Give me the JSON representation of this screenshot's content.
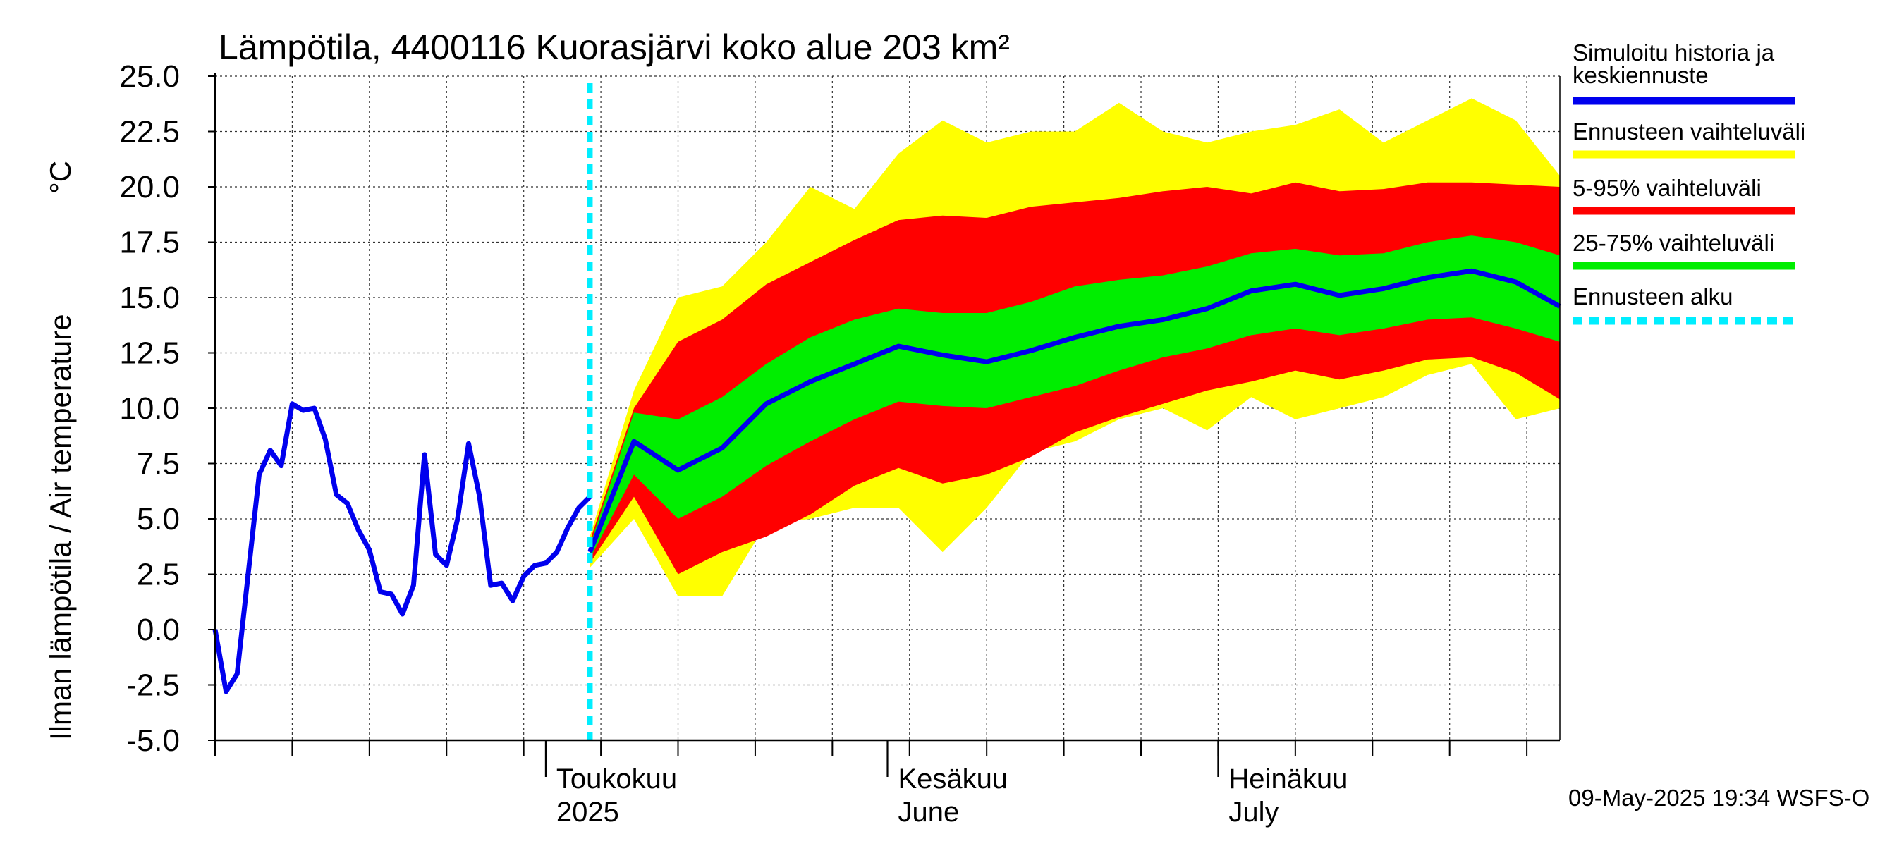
{
  "chart_data": {
    "type": "area",
    "title": "Lämpötila, 4400116 Kuorasjärvi koko alue 203 km²",
    "ylabel_fi": "Ilman lämpötila / Air temperature",
    "yunit": "°C",
    "ylim": [
      -5.0,
      25.0
    ],
    "yticks": [
      "25.0",
      "22.5",
      "20.0",
      "17.5",
      "15.0",
      "12.5",
      "10.0",
      "7.5",
      "5.0",
      "2.5",
      "0.0",
      "-2.5",
      "-5.0"
    ],
    "x_range": [
      "2025-04-01",
      "2025-08-01"
    ],
    "forecast_start": "2025-05-05",
    "months": [
      {
        "line1": "Toukokuu",
        "line2": "2025",
        "date": "2025-05-01"
      },
      {
        "line1": "Kesäkuu",
        "line2": "June",
        "date": "2025-06-01"
      },
      {
        "line1": "Heinäkuu",
        "line2": "July",
        "date": "2025-07-01"
      }
    ],
    "grid": true,
    "legend_position": "right",
    "legend": [
      {
        "label": "Simuloitu historia ja",
        "label2": "keskiennuste",
        "color": "#0000ee"
      },
      {
        "label": "Ennusteen vaihteluväli",
        "color": "#ffff00"
      },
      {
        "label": "5-95% vaihteluväli",
        "color": "#ff0000"
      },
      {
        "label": "25-75% vaihteluväli",
        "color": "#00ee00"
      },
      {
        "label": "Ennusteen alku",
        "color": "#00eeff"
      }
    ],
    "history": {
      "x": [
        "2025-04-01",
        "2025-04-02",
        "2025-04-03",
        "2025-04-05",
        "2025-04-06",
        "2025-04-07",
        "2025-04-08",
        "2025-04-09",
        "2025-04-10",
        "2025-04-11",
        "2025-04-12",
        "2025-04-13",
        "2025-04-14",
        "2025-04-15",
        "2025-04-16",
        "2025-04-17",
        "2025-04-18",
        "2025-04-19",
        "2025-04-20",
        "2025-04-21",
        "2025-04-22",
        "2025-04-23",
        "2025-04-24",
        "2025-04-25",
        "2025-04-26",
        "2025-04-27",
        "2025-04-28",
        "2025-04-29",
        "2025-04-30",
        "2025-05-01",
        "2025-05-02",
        "2025-05-03",
        "2025-05-04",
        "2025-05-05"
      ],
      "y": [
        0.0,
        -2.8,
        -2.0,
        7.0,
        8.1,
        7.4,
        10.2,
        9.9,
        10.0,
        8.6,
        6.1,
        5.7,
        4.5,
        3.6,
        1.7,
        1.6,
        0.7,
        2.0,
        7.9,
        3.4,
        2.9,
        5.0,
        8.4,
        6.0,
        2.0,
        2.1,
        1.3,
        2.4,
        2.9,
        3.0,
        3.5,
        4.6,
        5.5,
        6.0
      ]
    },
    "forecast": {
      "x": [
        "2025-05-05",
        "2025-05-09",
        "2025-05-13",
        "2025-05-17",
        "2025-05-21",
        "2025-05-25",
        "2025-05-29",
        "2025-06-02",
        "2025-06-06",
        "2025-06-10",
        "2025-06-14",
        "2025-06-18",
        "2025-06-22",
        "2025-06-26",
        "2025-06-30",
        "2025-07-04",
        "2025-07-08",
        "2025-07-12",
        "2025-07-16",
        "2025-07-20",
        "2025-07-24",
        "2025-07-28",
        "2025-08-01"
      ],
      "median": [
        3.5,
        8.5,
        7.2,
        8.2,
        10.2,
        11.2,
        12.0,
        12.8,
        12.4,
        12.1,
        12.6,
        13.2,
        13.7,
        14.0,
        14.5,
        15.3,
        15.6,
        15.1,
        15.4,
        15.9,
        16.2,
        15.7,
        14.6
      ],
      "p25": [
        3.2,
        7.0,
        5.0,
        6.0,
        7.4,
        8.5,
        9.5,
        10.3,
        10.1,
        10.0,
        10.5,
        11.0,
        11.7,
        12.3,
        12.7,
        13.3,
        13.6,
        13.3,
        13.6,
        14.0,
        14.1,
        13.6,
        13.0
      ],
      "p75": [
        3.8,
        9.8,
        9.5,
        10.5,
        12.0,
        13.2,
        14.0,
        14.5,
        14.3,
        14.3,
        14.8,
        15.5,
        15.8,
        16.0,
        16.4,
        17.0,
        17.2,
        16.9,
        17.0,
        17.5,
        17.8,
        17.5,
        16.9
      ],
      "p5": [
        3.0,
        6.0,
        2.5,
        3.5,
        4.2,
        5.2,
        6.5,
        7.3,
        6.6,
        7.0,
        7.8,
        8.9,
        9.6,
        10.2,
        10.8,
        11.2,
        11.7,
        11.3,
        11.7,
        12.2,
        12.3,
        11.6,
        10.4
      ],
      "p95": [
        4.0,
        10.0,
        13.0,
        14.0,
        15.6,
        16.6,
        17.6,
        18.5,
        18.7,
        18.6,
        19.1,
        19.3,
        19.5,
        19.8,
        20.0,
        19.7,
        20.2,
        19.8,
        19.9,
        20.2,
        20.2,
        20.1,
        20.0
      ],
      "min": [
        2.8,
        5.0,
        1.5,
        1.5,
        4.8,
        5.0,
        5.5,
        5.5,
        3.5,
        5.5,
        8.0,
        8.5,
        9.5,
        10.0,
        9.0,
        10.5,
        9.5,
        10.0,
        10.5,
        11.5,
        12.0,
        9.5,
        10.0
      ],
      "max": [
        4.2,
        10.8,
        15.0,
        15.5,
        17.5,
        20.0,
        19.0,
        21.5,
        23.0,
        22.0,
        22.5,
        22.5,
        23.8,
        22.5,
        22.0,
        22.5,
        22.8,
        23.5,
        22.0,
        23.0,
        24.0,
        23.0,
        20.5
      ]
    }
  },
  "footer": {
    "timestamp": "09-May-2025 19:34 WSFS-O"
  }
}
